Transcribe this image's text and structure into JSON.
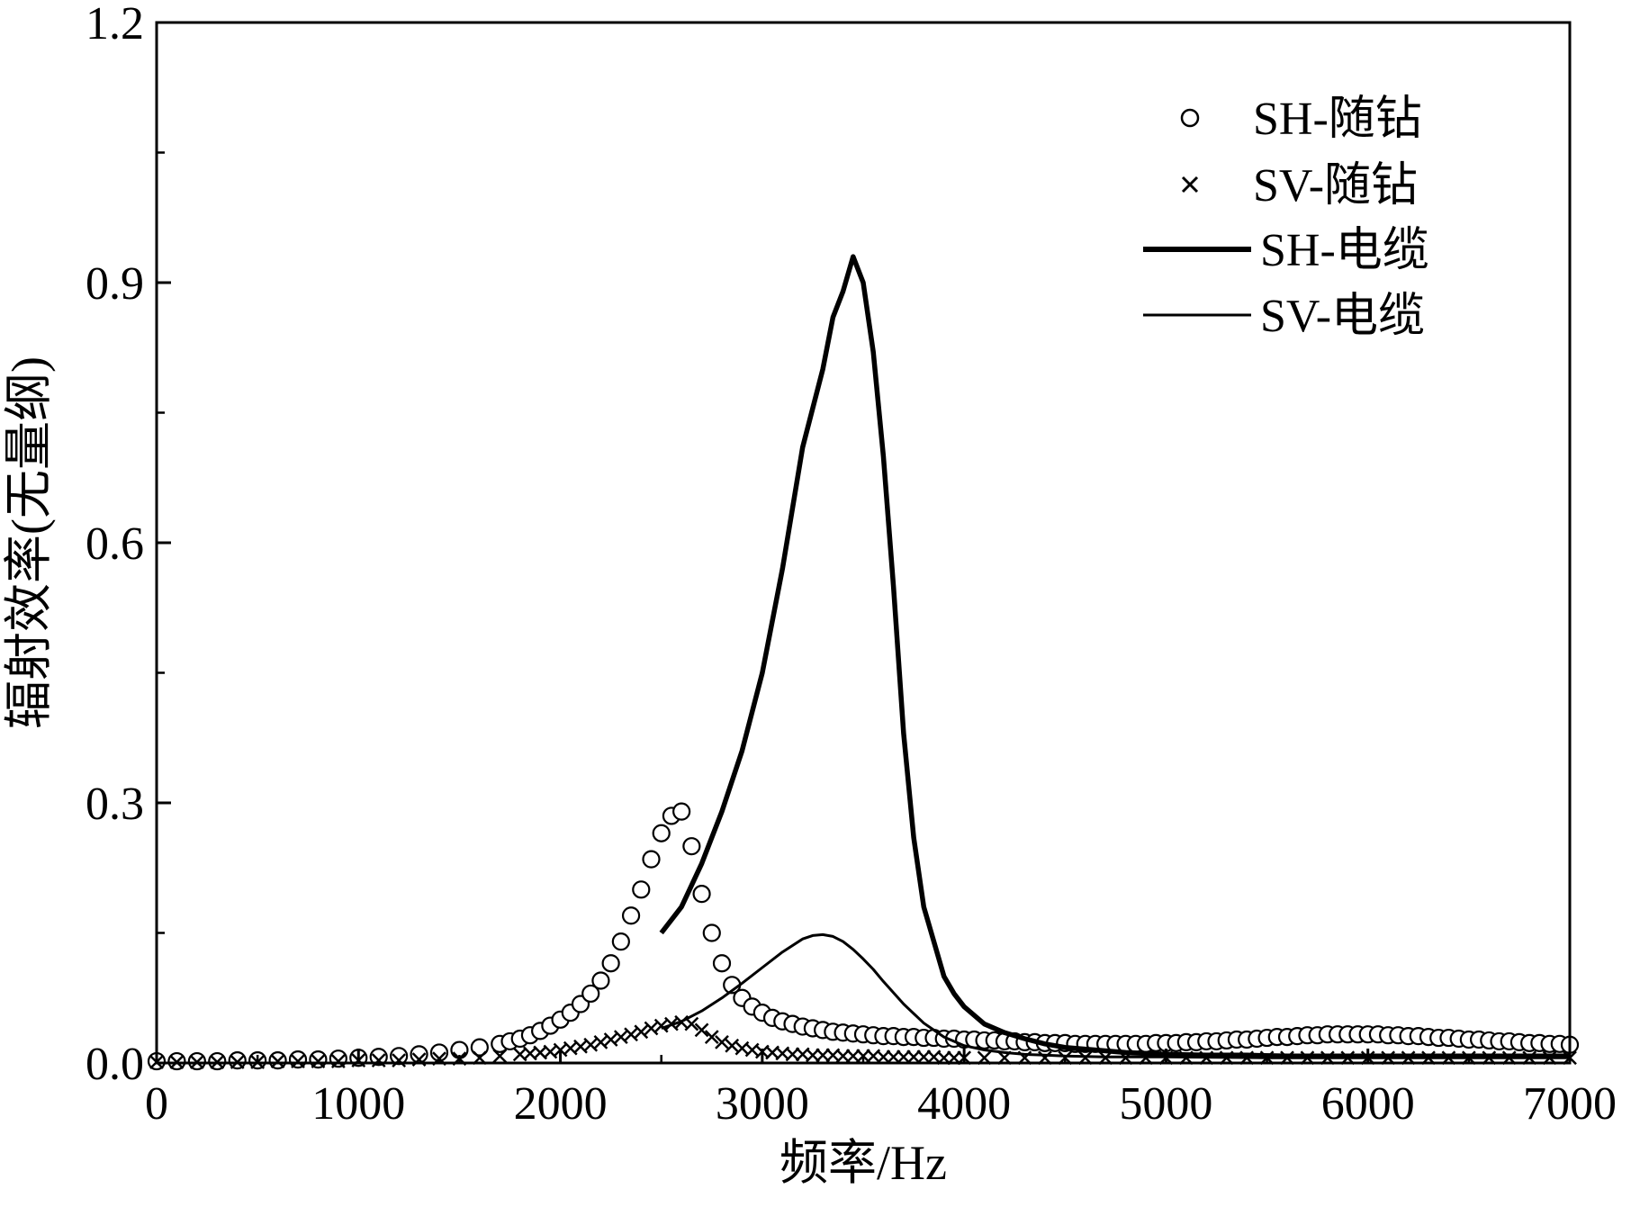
{
  "chart_data": {
    "type": "line",
    "title": "",
    "xlabel": "频率/Hz",
    "ylabel": "辐射效率(无量纲)",
    "xlim": [
      0,
      7000
    ],
    "ylim": [
      0,
      1.2
    ],
    "x_ticks": [
      0,
      1000,
      2000,
      3000,
      4000,
      5000,
      6000,
      7000
    ],
    "x_tick_labels": [
      "0",
      "1000",
      "2000",
      "3000",
      "4000",
      "5000",
      "6000",
      "7000"
    ],
    "y_ticks": [
      0.0,
      0.3,
      0.6,
      0.9,
      1.2
    ],
    "y_tick_labels": [
      "0.0",
      "0.3",
      "0.6",
      "0.9",
      "1.2"
    ],
    "grid": false,
    "legend_position": "top-right",
    "series": [
      {
        "name": "SH-随钻",
        "style": "circle-markers",
        "x": [
          0,
          100,
          200,
          300,
          400,
          500,
          600,
          700,
          800,
          900,
          1000,
          1100,
          1200,
          1300,
          1400,
          1500,
          1600,
          1700,
          1750,
          1800,
          1850,
          1900,
          1950,
          2000,
          2050,
          2100,
          2150,
          2200,
          2250,
          2300,
          2350,
          2400,
          2450,
          2500,
          2550,
          2600,
          2650,
          2700,
          2750,
          2800,
          2850,
          2900,
          2950,
          3000,
          3050,
          3100,
          3150,
          3200,
          3250,
          3300,
          3350,
          3400,
          3450,
          3500,
          3550,
          3600,
          3650,
          3700,
          3750,
          3800,
          3850,
          3900,
          3950,
          4000,
          4050,
          4100,
          4150,
          4200,
          4250,
          4300,
          4350,
          4400,
          4450,
          4500,
          4550,
          4600,
          4650,
          4700,
          4750,
          4800,
          4850,
          4900,
          4950,
          5000,
          5050,
          5100,
          5150,
          5200,
          5250,
          5300,
          5350,
          5400,
          5450,
          5500,
          5550,
          5600,
          5650,
          5700,
          5750,
          5800,
          5850,
          5900,
          5950,
          6000,
          6050,
          6100,
          6150,
          6200,
          6250,
          6300,
          6350,
          6400,
          6450,
          6500,
          6550,
          6600,
          6650,
          6700,
          6750,
          6800,
          6850,
          6900,
          6950,
          7000
        ],
        "y": [
          0.002,
          0.002,
          0.002,
          0.002,
          0.003,
          0.003,
          0.003,
          0.004,
          0.004,
          0.005,
          0.006,
          0.007,
          0.008,
          0.01,
          0.012,
          0.015,
          0.018,
          0.022,
          0.025,
          0.028,
          0.032,
          0.037,
          0.043,
          0.05,
          0.058,
          0.068,
          0.08,
          0.095,
          0.115,
          0.14,
          0.17,
          0.2,
          0.235,
          0.265,
          0.285,
          0.29,
          0.25,
          0.195,
          0.15,
          0.115,
          0.09,
          0.075,
          0.065,
          0.058,
          0.052,
          0.048,
          0.045,
          0.042,
          0.04,
          0.038,
          0.036,
          0.035,
          0.034,
          0.033,
          0.032,
          0.031,
          0.031,
          0.03,
          0.03,
          0.029,
          0.029,
          0.028,
          0.028,
          0.027,
          0.027,
          0.026,
          0.026,
          0.025,
          0.025,
          0.024,
          0.024,
          0.023,
          0.023,
          0.023,
          0.022,
          0.022,
          0.022,
          0.022,
          0.022,
          0.022,
          0.022,
          0.022,
          0.023,
          0.023,
          0.023,
          0.024,
          0.024,
          0.025,
          0.025,
          0.026,
          0.027,
          0.027,
          0.028,
          0.029,
          0.03,
          0.03,
          0.031,
          0.032,
          0.032,
          0.033,
          0.033,
          0.033,
          0.033,
          0.033,
          0.033,
          0.032,
          0.032,
          0.031,
          0.031,
          0.03,
          0.029,
          0.029,
          0.028,
          0.027,
          0.027,
          0.026,
          0.025,
          0.025,
          0.024,
          0.023,
          0.023,
          0.022,
          0.022,
          0.021
        ]
      },
      {
        "name": "SV-随钻",
        "style": "x-markers",
        "x": [
          0,
          100,
          200,
          300,
          400,
          500,
          600,
          700,
          800,
          900,
          1000,
          1100,
          1200,
          1300,
          1400,
          1500,
          1600,
          1700,
          1800,
          1850,
          1900,
          1950,
          2000,
          2050,
          2100,
          2150,
          2200,
          2250,
          2300,
          2350,
          2400,
          2450,
          2500,
          2550,
          2600,
          2650,
          2700,
          2750,
          2800,
          2850,
          2900,
          2950,
          3000,
          3050,
          3100,
          3150,
          3200,
          3250,
          3300,
          3350,
          3400,
          3450,
          3500,
          3550,
          3600,
          3650,
          3700,
          3750,
          3800,
          3850,
          3900,
          3950,
          4000,
          4100,
          4200,
          4300,
          4400,
          4500,
          4600,
          4700,
          4800,
          4900,
          5000,
          5100,
          5200,
          5300,
          5400,
          5500,
          5600,
          5700,
          5800,
          5900,
          6000,
          6100,
          6200,
          6300,
          6400,
          6500,
          6600,
          6700,
          6800,
          6900,
          7000
        ],
        "y": [
          0.001,
          0.001,
          0.001,
          0.001,
          0.001,
          0.001,
          0.002,
          0.002,
          0.002,
          0.002,
          0.003,
          0.003,
          0.003,
          0.004,
          0.005,
          0.005,
          0.006,
          0.008,
          0.01,
          0.011,
          0.012,
          0.013,
          0.015,
          0.017,
          0.019,
          0.021,
          0.024,
          0.027,
          0.03,
          0.033,
          0.036,
          0.04,
          0.043,
          0.045,
          0.047,
          0.045,
          0.038,
          0.03,
          0.024,
          0.02,
          0.017,
          0.015,
          0.013,
          0.012,
          0.011,
          0.01,
          0.01,
          0.009,
          0.009,
          0.009,
          0.008,
          0.008,
          0.008,
          0.008,
          0.007,
          0.007,
          0.007,
          0.007,
          0.007,
          0.007,
          0.006,
          0.006,
          0.006,
          0.006,
          0.006,
          0.006,
          0.006,
          0.006,
          0.006,
          0.006,
          0.006,
          0.006,
          0.006,
          0.006,
          0.006,
          0.006,
          0.006,
          0.006,
          0.006,
          0.006,
          0.006,
          0.006,
          0.006,
          0.006,
          0.006,
          0.006,
          0.006,
          0.006,
          0.006,
          0.006,
          0.006,
          0.006,
          0.006
        ]
      },
      {
        "name": "SH-电缆",
        "style": "thick-line",
        "x": [
          2500,
          2600,
          2700,
          2800,
          2900,
          3000,
          3100,
          3200,
          3300,
          3350,
          3400,
          3450,
          3500,
          3550,
          3600,
          3650,
          3700,
          3750,
          3800,
          3850,
          3900,
          3950,
          4000,
          4100,
          4200,
          4300,
          4400,
          4500,
          4600,
          4700,
          4800,
          4900,
          5000,
          5200,
          5400,
          5600,
          5800,
          6000,
          6200,
          6400,
          6600,
          6800,
          7000
        ],
        "y": [
          0.15,
          0.18,
          0.23,
          0.29,
          0.36,
          0.45,
          0.57,
          0.71,
          0.8,
          0.86,
          0.89,
          0.93,
          0.9,
          0.82,
          0.7,
          0.55,
          0.38,
          0.26,
          0.18,
          0.14,
          0.1,
          0.08,
          0.065,
          0.045,
          0.035,
          0.028,
          0.022,
          0.018,
          0.016,
          0.014,
          0.012,
          0.011,
          0.01,
          0.009,
          0.009,
          0.008,
          0.008,
          0.008,
          0.008,
          0.008,
          0.008,
          0.008,
          0.008
        ]
      },
      {
        "name": "SV-电缆",
        "style": "thin-line",
        "x": [
          2500,
          2600,
          2700,
          2800,
          2900,
          3000,
          3100,
          3200,
          3250,
          3300,
          3350,
          3400,
          3450,
          3500,
          3550,
          3600,
          3700,
          3800,
          3900,
          4000,
          4100,
          4200,
          4300,
          4400,
          4500,
          4700,
          5000,
          5500,
          6000,
          6500,
          7000
        ],
        "y": [
          0.04,
          0.048,
          0.06,
          0.075,
          0.092,
          0.11,
          0.128,
          0.143,
          0.147,
          0.148,
          0.146,
          0.14,
          0.131,
          0.12,
          0.108,
          0.094,
          0.068,
          0.046,
          0.03,
          0.02,
          0.015,
          0.012,
          0.01,
          0.009,
          0.008,
          0.007,
          0.007,
          0.006,
          0.006,
          0.006,
          0.006
        ]
      }
    ]
  },
  "colors": {
    "background": "#ffffff",
    "ink": "#000000"
  }
}
